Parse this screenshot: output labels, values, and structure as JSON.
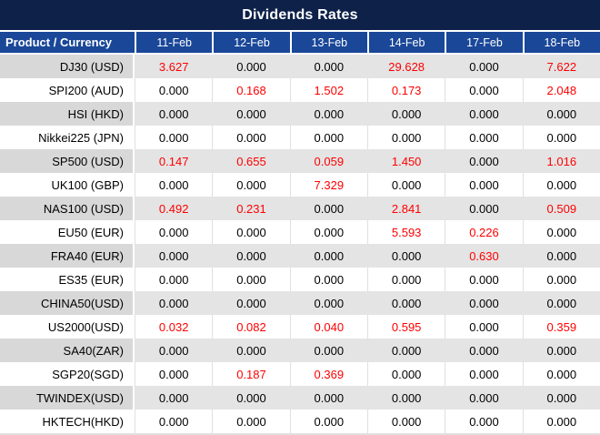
{
  "title": "Dividends Rates",
  "columns": [
    "Product / Currency",
    "11-Feb",
    "12-Feb",
    "13-Feb",
    "14-Feb",
    "17-Feb",
    "18-Feb"
  ],
  "zero_value": "0.000",
  "rows": [
    {
      "product": "DJ30 (USD)",
      "values": [
        "3.627",
        "0.000",
        "0.000",
        "29.628",
        "0.000",
        "7.622"
      ]
    },
    {
      "product": "SPI200 (AUD)",
      "values": [
        "0.000",
        "0.168",
        "1.502",
        "0.173",
        "0.000",
        "2.048"
      ]
    },
    {
      "product": "HSI (HKD)",
      "values": [
        "0.000",
        "0.000",
        "0.000",
        "0.000",
        "0.000",
        "0.000"
      ]
    },
    {
      "product": "Nikkei225 (JPN)",
      "values": [
        "0.000",
        "0.000",
        "0.000",
        "0.000",
        "0.000",
        "0.000"
      ]
    },
    {
      "product": "SP500 (USD)",
      "values": [
        "0.147",
        "0.655",
        "0.059",
        "1.450",
        "0.000",
        "1.016"
      ]
    },
    {
      "product": "UK100 (GBP)",
      "values": [
        "0.000",
        "0.000",
        "7.329",
        "0.000",
        "0.000",
        "0.000"
      ]
    },
    {
      "product": "NAS100 (USD)",
      "values": [
        "0.492",
        "0.231",
        "0.000",
        "2.841",
        "0.000",
        "0.509"
      ]
    },
    {
      "product": "EU50 (EUR)",
      "values": [
        "0.000",
        "0.000",
        "0.000",
        "5.593",
        "0.226",
        "0.000"
      ]
    },
    {
      "product": "FRA40 (EUR)",
      "values": [
        "0.000",
        "0.000",
        "0.000",
        "0.000",
        "0.630",
        "0.000"
      ]
    },
    {
      "product": "ES35 (EUR)",
      "values": [
        "0.000",
        "0.000",
        "0.000",
        "0.000",
        "0.000",
        "0.000"
      ]
    },
    {
      "product": "CHINA50(USD)",
      "values": [
        "0.000",
        "0.000",
        "0.000",
        "0.000",
        "0.000",
        "0.000"
      ]
    },
    {
      "product": "US2000(USD)",
      "values": [
        "0.032",
        "0.082",
        "0.040",
        "0.595",
        "0.000",
        "0.359"
      ]
    },
    {
      "product": "SA40(ZAR)",
      "values": [
        "0.000",
        "0.000",
        "0.000",
        "0.000",
        "0.000",
        "0.000"
      ]
    },
    {
      "product": "SGP20(SGD)",
      "values": [
        "0.000",
        "0.187",
        "0.369",
        "0.000",
        "0.000",
        "0.000"
      ]
    },
    {
      "product": "TWINDEX(USD)",
      "values": [
        "0.000",
        "0.000",
        "0.000",
        "0.000",
        "0.000",
        "0.000"
      ]
    },
    {
      "product": "HKTECH(HKD)",
      "values": [
        "0.000",
        "0.000",
        "0.000",
        "0.000",
        "0.000",
        "0.000"
      ]
    }
  ],
  "colors": {
    "title_bg": "#0d2149",
    "header_bg": "#1a4798",
    "stripe_product_bg": "#d8d8d8",
    "stripe_value_bg": "#e4e4e4",
    "value_red": "#ff0000",
    "value_black": "#000000",
    "border_light": "#e0e0e0"
  }
}
